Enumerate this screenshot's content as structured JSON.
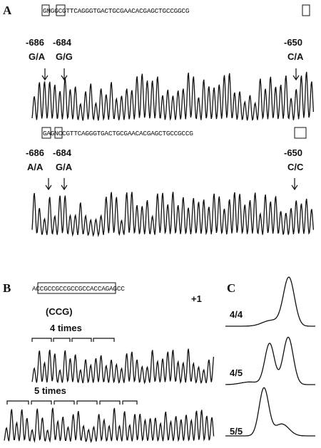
{
  "panel_a": {
    "label": "A",
    "sequence_1": "GNGGCGTTCAGGGTGACTGCGAACACGAGCTGCCGGCG",
    "positions_1": [
      "-686",
      "-684",
      "-650"
    ],
    "genotypes_1": [
      "G/A",
      "G/G",
      "C/A"
    ],
    "sequence_2": "GAGNCCGTTCAGGGTGACTGCGAACACGAGCTGCCGCCG",
    "positions_2": [
      "-686",
      "-684",
      "-650"
    ],
    "genotypes_2": [
      "A/A",
      "G/A",
      "C/C"
    ]
  },
  "panel_b": {
    "label": "B",
    "sequence": "ACCGCCGCCGCCGCCACCAGAGCC",
    "position": "+1",
    "repeat": "(CCG)",
    "count_1": "4 times",
    "count_2": "5 times"
  },
  "panel_c": {
    "label": "C",
    "genotypes": [
      "4/4",
      "4/5",
      "5/5"
    ]
  }
}
